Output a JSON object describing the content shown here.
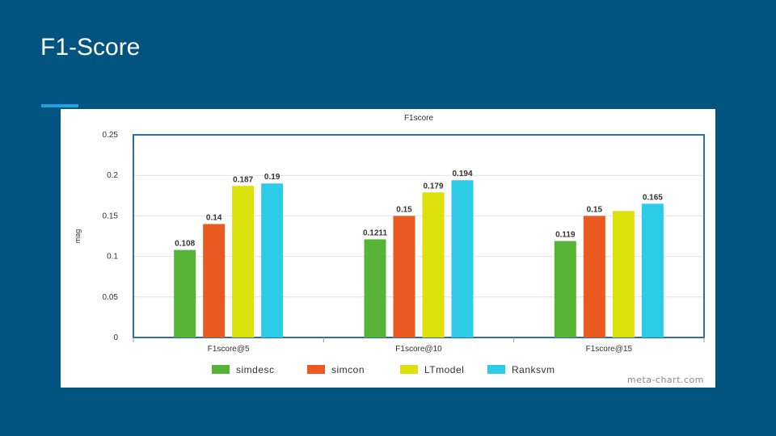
{
  "slide": {
    "title": "F1-Score"
  },
  "colors": {
    "background": "#01547f",
    "accent": "#1fa3e0",
    "plot_border": "#2e6fa6"
  },
  "chart_data": {
    "type": "bar",
    "title": "F1score",
    "ylabel": "mag",
    "xlabel": "",
    "ylim": [
      0,
      0.25
    ],
    "yticks": [
      "0",
      "0.05",
      "0.1",
      "0.15",
      "0.2",
      "0.25"
    ],
    "categories": [
      "F1score@5",
      "F1score@10",
      "F1score@15"
    ],
    "series": [
      {
        "name": "simdesc",
        "color": "#56b436",
        "values": [
          0.108,
          0.1211,
          0.119
        ],
        "labels": [
          "0.108",
          "0.1211",
          "0.119"
        ]
      },
      {
        "name": "simcon",
        "color": "#ea5920",
        "values": [
          0.14,
          0.15,
          0.15
        ],
        "labels": [
          "0.14",
          "0.15",
          "0.15"
        ]
      },
      {
        "name": "LTmodel",
        "color": "#dce00b",
        "values": [
          0.187,
          0.179,
          0.156
        ],
        "labels": [
          "0.187",
          "0.179",
          ""
        ]
      },
      {
        "name": "Ranksvm",
        "color": "#2ccbe8",
        "values": [
          0.19,
          0.194,
          0.165
        ],
        "labels": [
          "0.19",
          "0.194",
          "0.165"
        ]
      }
    ],
    "grid": true,
    "legend_position": "bottom",
    "watermark": "meta-chart.com"
  }
}
